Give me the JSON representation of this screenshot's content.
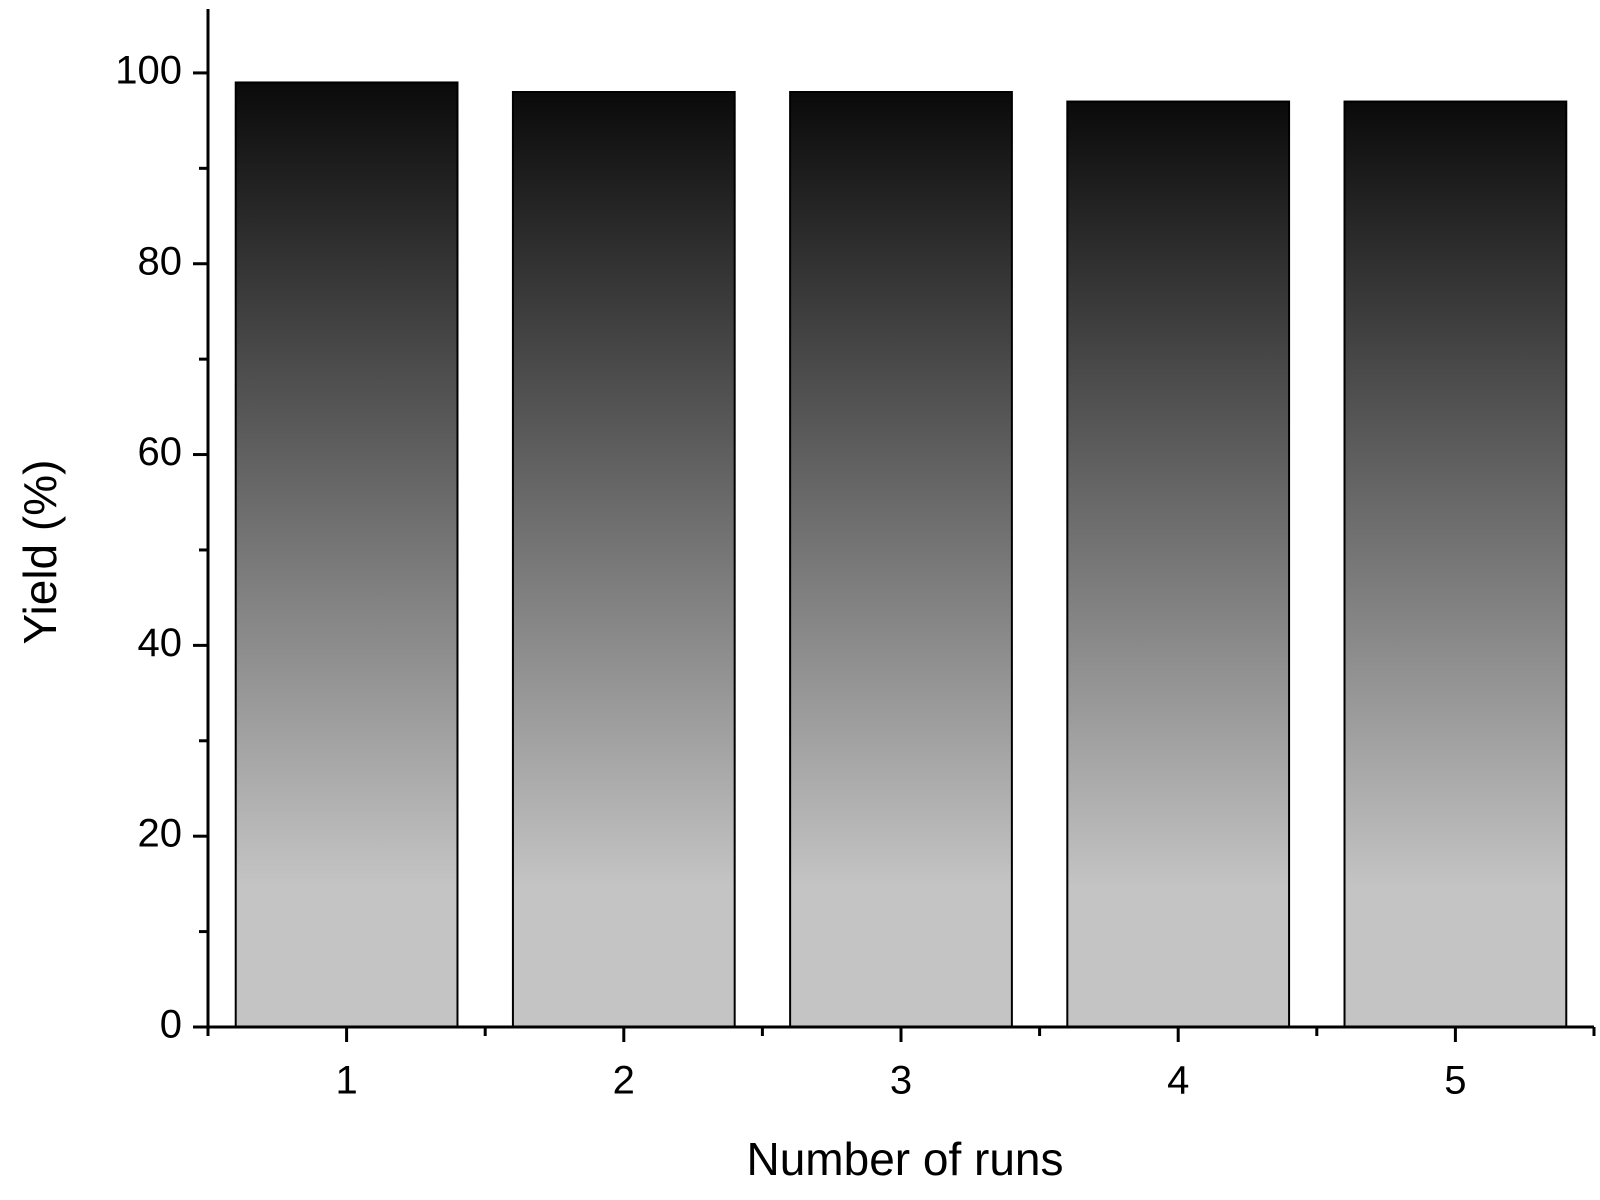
{
  "chart_data": {
    "type": "bar",
    "x_label": "Number of runs",
    "y_label": "Yield (%)",
    "categories": [
      "1",
      "2",
      "3",
      "4",
      "5"
    ],
    "values": [
      99,
      98,
      98,
      97,
      97
    ],
    "color_top": "#0a0a0a",
    "color_bottom": "#c4c4c4",
    "ylim": [
      0,
      106.7
    ],
    "yticks": [
      0,
      20,
      40,
      60,
      80,
      100
    ],
    "grid": false
  }
}
